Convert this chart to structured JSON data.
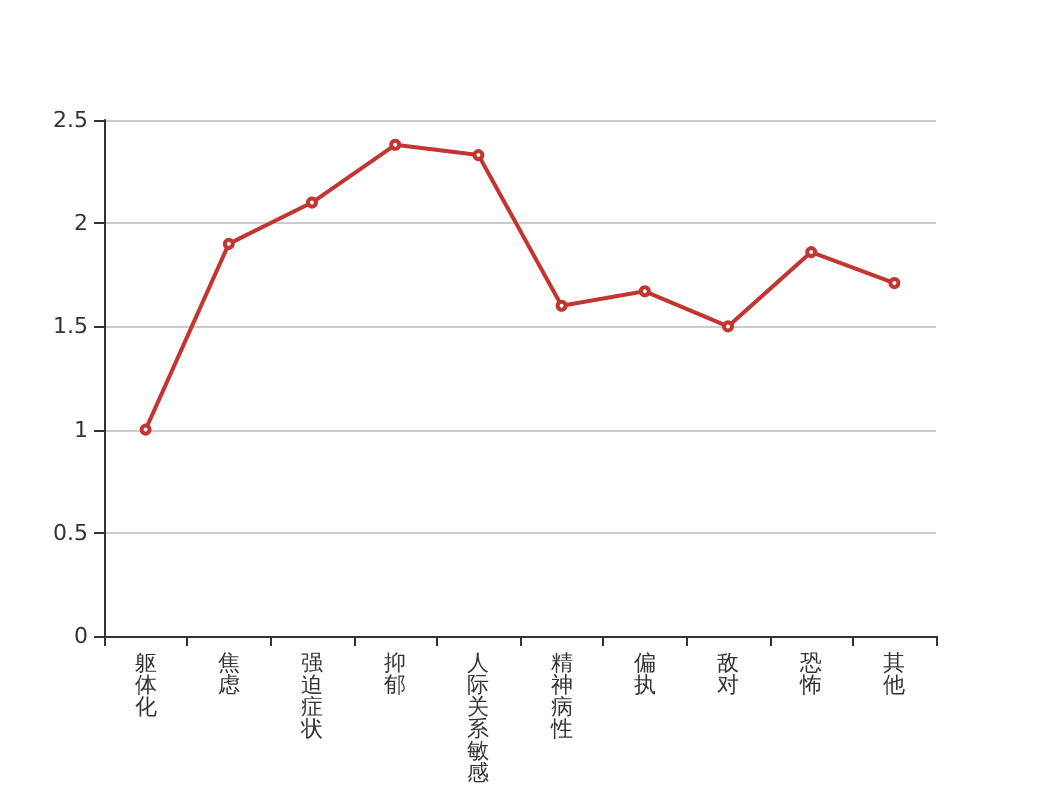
{
  "chart_data": {
    "type": "line",
    "categories": [
      "躯体化",
      "焦虑",
      "强迫症状",
      "抑郁",
      "人际关系敏感",
      "精神病性",
      "偏执",
      "敌对",
      "恐怖",
      "其他"
    ],
    "series": [
      {
        "color": "#c23531",
        "values": [
          1.0,
          1.9,
          2.1,
          2.38,
          2.33,
          1.6,
          1.67,
          1.5,
          1.86,
          1.71
        ]
      }
    ],
    "ylim": [
      0,
      2.5
    ],
    "yticks": [
      0,
      0.5,
      1,
      1.5,
      2,
      2.5
    ],
    "grid": "y",
    "marker": "circle",
    "line_style": "solid"
  }
}
